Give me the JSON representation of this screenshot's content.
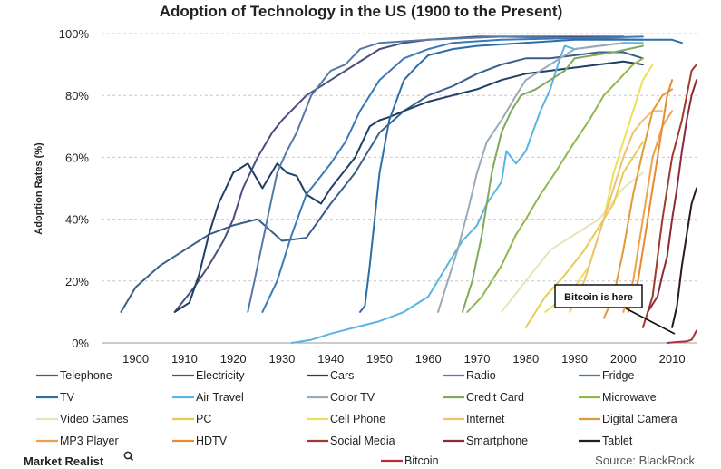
{
  "chart_data": {
    "type": "line",
    "title": "Adoption of Technology in the US (1900 to the Present)",
    "ylabel": "Adoption Rates (%)",
    "xlabel": "",
    "xlim": [
      1893,
      2015
    ],
    "ylim": [
      0,
      100
    ],
    "x_ticks": [
      "1900",
      "1910",
      "1920",
      "1930",
      "1940",
      "1950",
      "1960",
      "1970",
      "1980",
      "1990",
      "2000",
      "2010"
    ],
    "y_ticks": [
      "0%",
      "20%",
      "40%",
      "60%",
      "80%",
      "100%"
    ],
    "grid": true,
    "legend_placement": "bottom",
    "annotation": {
      "text": "Bitcoin is here",
      "x": 2011,
      "y": 3
    },
    "source": "Source: BlackRock",
    "brand": "Market Realist",
    "series": [
      {
        "name": "Telephone",
        "color": "#3a5f8a",
        "points": [
          [
            1897,
            10
          ],
          [
            1900,
            18
          ],
          [
            1905,
            25
          ],
          [
            1910,
            30
          ],
          [
            1915,
            35
          ],
          [
            1920,
            38
          ],
          [
            1925,
            40
          ],
          [
            1930,
            33
          ],
          [
            1935,
            34
          ],
          [
            1940,
            45
          ],
          [
            1945,
            55
          ],
          [
            1950,
            68
          ],
          [
            1955,
            75
          ],
          [
            1960,
            80
          ],
          [
            1965,
            83
          ],
          [
            1970,
            87
          ],
          [
            1975,
            90
          ],
          [
            1980,
            92
          ],
          [
            1985,
            92
          ],
          [
            1990,
            93
          ],
          [
            1995,
            94
          ],
          [
            2000,
            94
          ],
          [
            2004,
            92
          ]
        ]
      },
      {
        "name": "Electricity",
        "color": "#4a4f7c",
        "points": [
          [
            1908,
            10
          ],
          [
            1912,
            18
          ],
          [
            1915,
            25
          ],
          [
            1918,
            33
          ],
          [
            1920,
            40
          ],
          [
            1922,
            50
          ],
          [
            1925,
            60
          ],
          [
            1928,
            68
          ],
          [
            1930,
            72
          ],
          [
            1935,
            80
          ],
          [
            1940,
            85
          ],
          [
            1945,
            90
          ],
          [
            1950,
            95
          ],
          [
            1955,
            97
          ],
          [
            1960,
            98
          ],
          [
            1970,
            99
          ],
          [
            2000,
            99
          ]
        ]
      },
      {
        "name": "Cars",
        "color": "#1f3f66",
        "points": [
          [
            1908,
            10
          ],
          [
            1911,
            13
          ],
          [
            1913,
            22
          ],
          [
            1915,
            35
          ],
          [
            1917,
            45
          ],
          [
            1920,
            55
          ],
          [
            1923,
            58
          ],
          [
            1926,
            50
          ],
          [
            1929,
            58
          ],
          [
            1931,
            55
          ],
          [
            1933,
            54
          ],
          [
            1935,
            48
          ],
          [
            1938,
            45
          ],
          [
            1940,
            50
          ],
          [
            1945,
            60
          ],
          [
            1948,
            70
          ],
          [
            1950,
            72
          ],
          [
            1952,
            73
          ],
          [
            1955,
            75
          ],
          [
            1960,
            78
          ],
          [
            1965,
            80
          ],
          [
            1970,
            82
          ],
          [
            1975,
            85
          ],
          [
            1980,
            87
          ],
          [
            1985,
            88
          ],
          [
            1990,
            89
          ],
          [
            1995,
            90
          ],
          [
            2000,
            91
          ],
          [
            2004,
            90
          ]
        ]
      },
      {
        "name": "Radio",
        "color": "#5679a6",
        "points": [
          [
            1923,
            10
          ],
          [
            1925,
            25
          ],
          [
            1927,
            40
          ],
          [
            1929,
            55
          ],
          [
            1931,
            62
          ],
          [
            1933,
            68
          ],
          [
            1936,
            80
          ],
          [
            1938,
            84
          ],
          [
            1940,
            88
          ],
          [
            1943,
            90
          ],
          [
            1946,
            95
          ],
          [
            1950,
            97
          ],
          [
            1960,
            98
          ],
          [
            1975,
            99
          ],
          [
            2004,
            98
          ]
        ]
      },
      {
        "name": "Fridge",
        "color": "#3b79b8",
        "points": [
          [
            1926,
            10
          ],
          [
            1929,
            20
          ],
          [
            1932,
            35
          ],
          [
            1935,
            48
          ],
          [
            1937,
            52
          ],
          [
            1940,
            58
          ],
          [
            1943,
            65
          ],
          [
            1946,
            75
          ],
          [
            1950,
            85
          ],
          [
            1955,
            92
          ],
          [
            1960,
            95
          ],
          [
            1965,
            97
          ],
          [
            1975,
            98
          ],
          [
            2004,
            99
          ]
        ]
      },
      {
        "name": "TV",
        "color": "#2c6ea8",
        "points": [
          [
            1946,
            10
          ],
          [
            1947,
            12
          ],
          [
            1948,
            25
          ],
          [
            1949,
            40
          ],
          [
            1950,
            55
          ],
          [
            1952,
            72
          ],
          [
            1955,
            85
          ],
          [
            1958,
            90
          ],
          [
            1960,
            93
          ],
          [
            1965,
            95
          ],
          [
            1970,
            96
          ],
          [
            1990,
            98
          ],
          [
            2010,
            98
          ],
          [
            2012,
            97
          ]
        ]
      },
      {
        "name": "Air Travel",
        "color": "#5ab4e2",
        "points": [
          [
            1932,
            0
          ],
          [
            1936,
            1
          ],
          [
            1940,
            3
          ],
          [
            1945,
            5
          ],
          [
            1950,
            7
          ],
          [
            1955,
            10
          ],
          [
            1960,
            15
          ],
          [
            1965,
            28
          ],
          [
            1967,
            33
          ],
          [
            1970,
            38
          ],
          [
            1972,
            45
          ],
          [
            1975,
            52
          ],
          [
            1976,
            62
          ],
          [
            1978,
            58
          ],
          [
            1980,
            62
          ],
          [
            1983,
            75
          ],
          [
            1985,
            82
          ],
          [
            1987,
            92
          ],
          [
            1988,
            96
          ],
          [
            1990,
            95
          ],
          [
            2000,
            97
          ],
          [
            2004,
            97
          ]
        ]
      },
      {
        "name": "Color TV",
        "color": "#9aa9b8",
        "points": [
          [
            1962,
            10
          ],
          [
            1964,
            20
          ],
          [
            1966,
            30
          ],
          [
            1968,
            42
          ],
          [
            1970,
            55
          ],
          [
            1972,
            65
          ],
          [
            1975,
            72
          ],
          [
            1978,
            80
          ],
          [
            1980,
            85
          ],
          [
            1985,
            90
          ],
          [
            1990,
            95
          ],
          [
            1995,
            96
          ],
          [
            2000,
            97
          ]
        ]
      },
      {
        "name": "Credit Card",
        "color": "#7faa5a",
        "points": [
          [
            1967,
            10
          ],
          [
            1969,
            20
          ],
          [
            1971,
            35
          ],
          [
            1973,
            55
          ],
          [
            1975,
            68
          ],
          [
            1977,
            75
          ],
          [
            1979,
            80
          ],
          [
            1982,
            82
          ],
          [
            1985,
            85
          ],
          [
            1988,
            88
          ],
          [
            1990,
            92
          ],
          [
            1994,
            93
          ],
          [
            1998,
            94
          ],
          [
            2001,
            95
          ],
          [
            2004,
            96
          ]
        ]
      },
      {
        "name": "Microwave",
        "color": "#8fb84a",
        "points": [
          [
            1968,
            10
          ],
          [
            1971,
            15
          ],
          [
            1975,
            25
          ],
          [
            1978,
            35
          ],
          [
            1980,
            40
          ],
          [
            1983,
            48
          ],
          [
            1986,
            55
          ],
          [
            1988,
            60
          ],
          [
            1990,
            65
          ],
          [
            1993,
            72
          ],
          [
            1996,
            80
          ],
          [
            1999,
            85
          ],
          [
            2002,
            90
          ],
          [
            2004,
            92
          ]
        ]
      },
      {
        "name": "Video Games",
        "color": "#e8e3b8",
        "points": [
          [
            1975,
            10
          ],
          [
            1980,
            20
          ],
          [
            1985,
            30
          ],
          [
            1990,
            35
          ],
          [
            1995,
            40
          ],
          [
            2000,
            50
          ],
          [
            2004,
            55
          ]
        ]
      },
      {
        "name": "PC",
        "color": "#e8cc52",
        "points": [
          [
            1980,
            5
          ],
          [
            1984,
            15
          ],
          [
            1988,
            22
          ],
          [
            1992,
            30
          ],
          [
            1996,
            40
          ],
          [
            1998,
            45
          ],
          [
            2000,
            55
          ],
          [
            2002,
            60
          ],
          [
            2004,
            65
          ]
        ]
      },
      {
        "name": "Cell Phone",
        "color": "#eedf5a",
        "points": [
          [
            1984,
            10
          ],
          [
            1988,
            15
          ],
          [
            1990,
            18
          ],
          [
            1993,
            25
          ],
          [
            1996,
            40
          ],
          [
            1998,
            55
          ],
          [
            2000,
            65
          ],
          [
            2002,
            75
          ],
          [
            2004,
            85
          ],
          [
            2006,
            90
          ]
        ]
      },
      {
        "name": "Internet",
        "color": "#f0c070",
        "points": [
          [
            1989,
            10
          ],
          [
            1992,
            20
          ],
          [
            1994,
            30
          ],
          [
            1996,
            40
          ],
          [
            1998,
            50
          ],
          [
            2000,
            60
          ],
          [
            2002,
            68
          ],
          [
            2004,
            72
          ],
          [
            2006,
            75
          ],
          [
            2008,
            75
          ]
        ]
      },
      {
        "name": "Digital Camera",
        "color": "#e09a3a",
        "points": [
          [
            1996,
            8
          ],
          [
            1998,
            15
          ],
          [
            2000,
            30
          ],
          [
            2002,
            48
          ],
          [
            2004,
            62
          ],
          [
            2006,
            75
          ],
          [
            2008,
            80
          ],
          [
            2010,
            82
          ]
        ]
      },
      {
        "name": "MP3 Player",
        "color": "#f0a04a",
        "points": [
          [
            2000,
            10
          ],
          [
            2002,
            20
          ],
          [
            2004,
            40
          ],
          [
            2006,
            60
          ],
          [
            2008,
            70
          ],
          [
            2010,
            75
          ]
        ]
      },
      {
        "name": "HDTV",
        "color": "#e88a30",
        "points": [
          [
            2001,
            10
          ],
          [
            2003,
            20
          ],
          [
            2005,
            40
          ],
          [
            2007,
            60
          ],
          [
            2009,
            80
          ],
          [
            2010,
            85
          ]
        ]
      },
      {
        "name": "Social Media",
        "color": "#a0392e",
        "points": [
          [
            2004,
            5
          ],
          [
            2006,
            15
          ],
          [
            2008,
            40
          ],
          [
            2010,
            60
          ],
          [
            2012,
            72
          ],
          [
            2014,
            88
          ],
          [
            2015,
            90
          ]
        ]
      },
      {
        "name": "Smartphone",
        "color": "#8a2a3a",
        "points": [
          [
            2005,
            10
          ],
          [
            2007,
            15
          ],
          [
            2008,
            22
          ],
          [
            2009,
            28
          ],
          [
            2010,
            40
          ],
          [
            2011,
            50
          ],
          [
            2012,
            62
          ],
          [
            2013,
            72
          ],
          [
            2014,
            80
          ],
          [
            2015,
            85
          ]
        ]
      },
      {
        "name": "Tablet",
        "color": "#2a1a1a",
        "points": [
          [
            2010,
            5
          ],
          [
            2011,
            12
          ],
          [
            2012,
            25
          ],
          [
            2013,
            35
          ],
          [
            2014,
            45
          ],
          [
            2015,
            50
          ]
        ]
      },
      {
        "name": "Bitcoin",
        "color": "#b03038",
        "points": [
          [
            2009,
            0
          ],
          [
            2011,
            0.3
          ],
          [
            2013,
            0.5
          ],
          [
            2014,
            1
          ],
          [
            2015,
            4
          ]
        ]
      }
    ]
  }
}
